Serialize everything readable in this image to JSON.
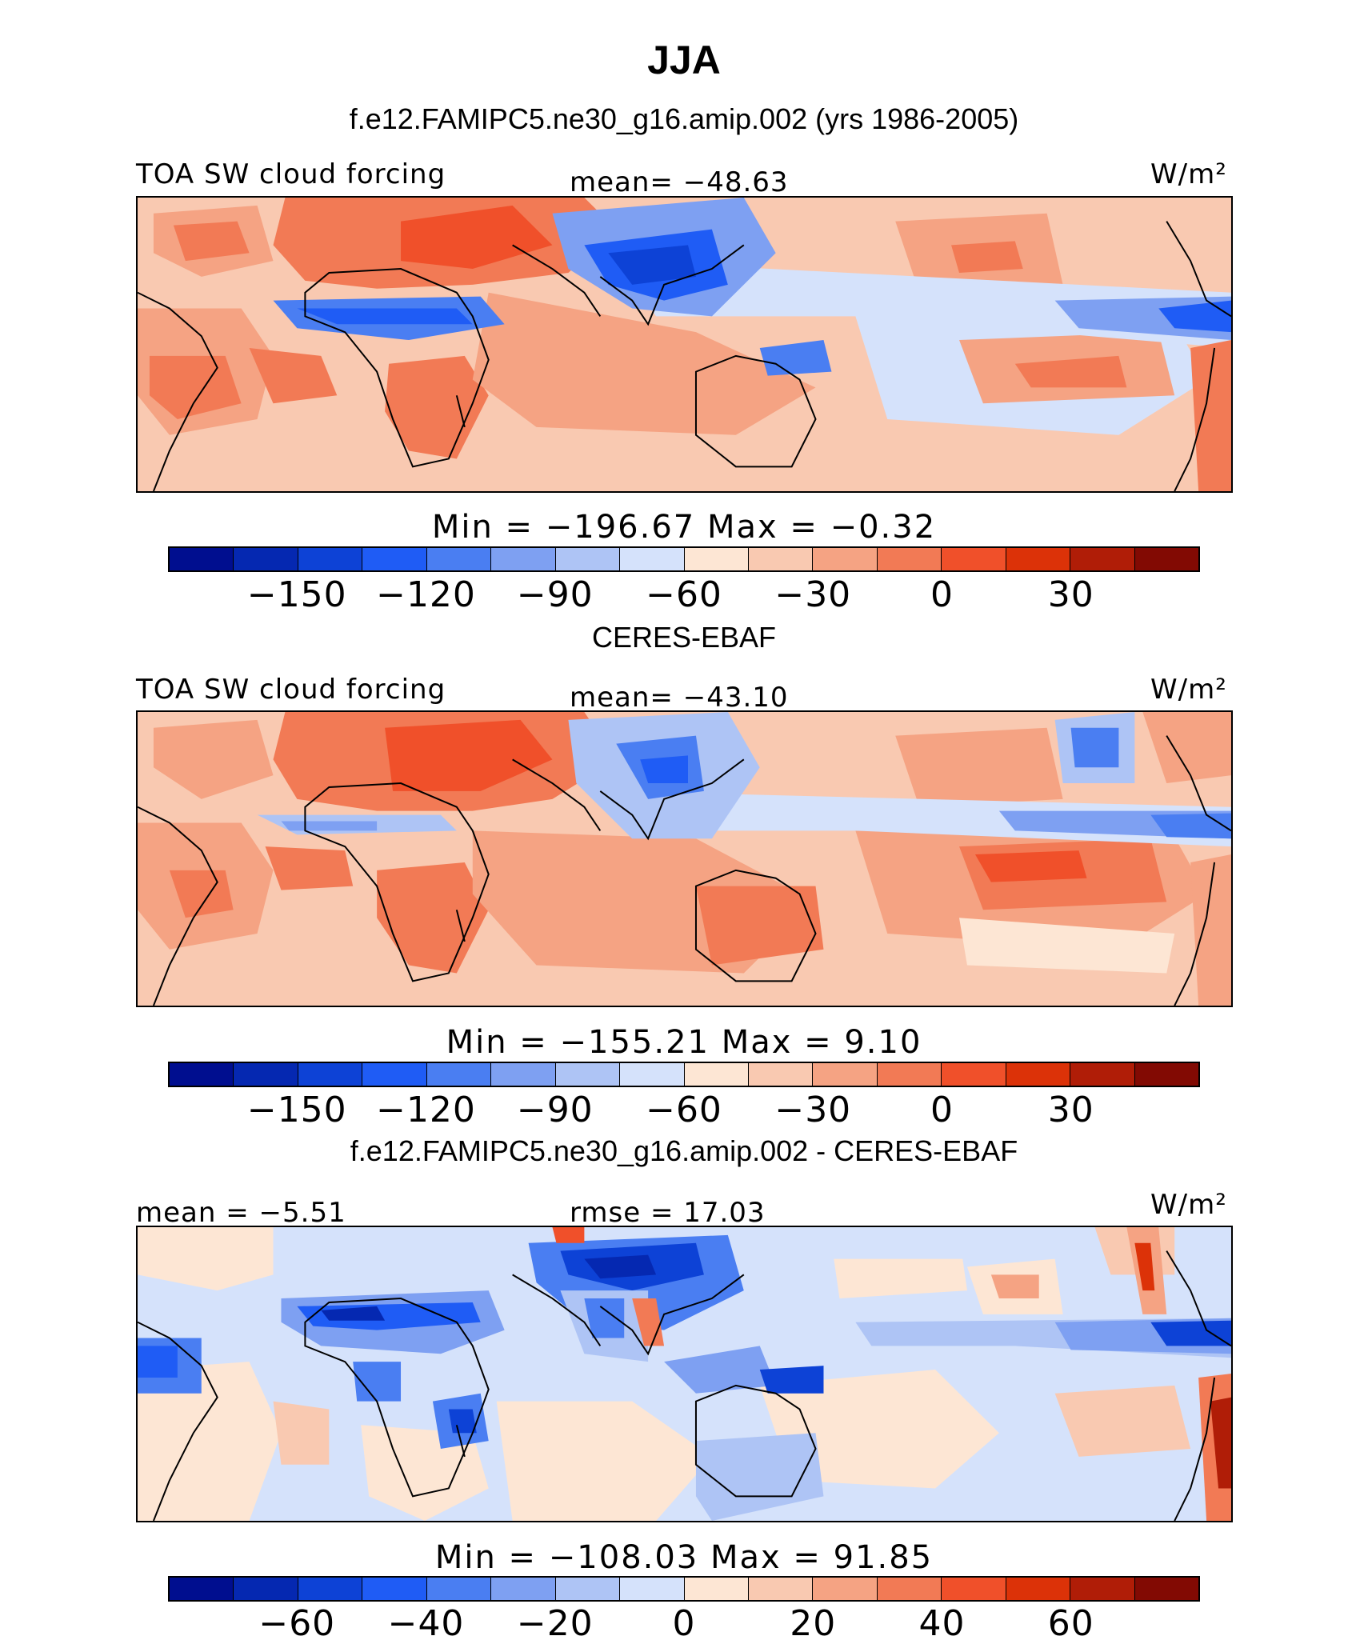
{
  "title": "JJA",
  "panels": [
    {
      "heading": "f.e12.FAMIPC5.ne30_g16.amip.002 (yrs 1986-2005)",
      "left_label": "TOA SW cloud forcing",
      "center_label": "mean= −48.63",
      "units": "W/m²",
      "minmax": "Min  =  −196.67  Max  =    −0.32",
      "colorbar_ticks": [
        "−150",
        "−120",
        "−90",
        "−60",
        "−30",
        "0",
        "30"
      ]
    },
    {
      "heading": "CERES-EBAF",
      "left_label": "TOA SW cloud forcing",
      "center_label": "mean= −43.10",
      "units": "W/m²",
      "minmax": "Min  =  −155.21  Max  =     9.10",
      "colorbar_ticks": [
        "−150",
        "−120",
        "−90",
        "−60",
        "−30",
        "0",
        "30"
      ]
    },
    {
      "heading": "f.e12.FAMIPC5.ne30_g16.amip.002 - CERES-EBAF",
      "left_label": "mean  =   −5.51",
      "center_label": "rmse  =   17.03",
      "units": "W/m²",
      "minmax": "Min  =  −108.03  Max  =    91.85",
      "colorbar_ticks": [
        "−60",
        "−40",
        "−20",
        "0",
        "20",
        "40",
        "60"
      ]
    }
  ],
  "colorbar_colors": [
    "#000e8f",
    "#0528b1",
    "#0d42d6",
    "#1f5cf5",
    "#4a7ef2",
    "#7ea0f2",
    "#aec4f5",
    "#d5e2fb",
    "#fde6d4",
    "#f9c9b1",
    "#f5a383",
    "#f27a55",
    "#f0502a",
    "#dc3208",
    "#b01d07",
    "#820a03"
  ]
}
